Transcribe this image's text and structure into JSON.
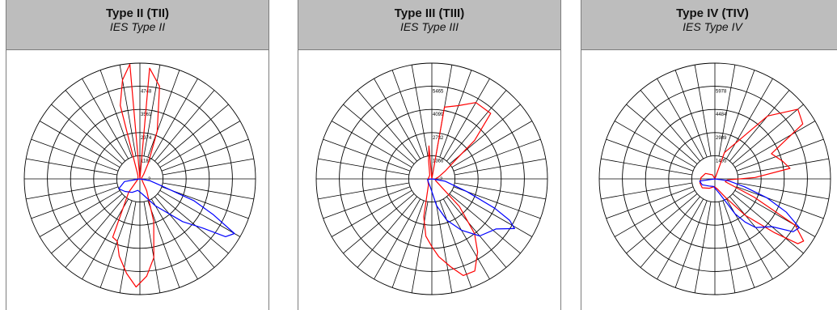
{
  "chart_data": [
    {
      "type": "polar",
      "title": "Type II (TII)",
      "subtitle": "IES Type II",
      "rlabels": [
        "1187",
        "2374",
        "3561",
        "4748"
      ],
      "annotation": "2",
      "rmax": 5935,
      "series": [
        {
          "color": "#ff0000",
          "points": [
            [
              0,
              0
            ],
            [
              5,
              5700
            ],
            [
              12,
              4850
            ],
            [
              20,
              2600
            ],
            [
              28,
              900
            ],
            [
              40,
              300
            ],
            [
              60,
              100
            ],
            [
              120,
              120
            ],
            [
              150,
              700
            ],
            [
              162,
              2300
            ],
            [
              170,
              4100
            ],
            [
              176,
              5000
            ],
            [
              182,
              5550
            ],
            [
              188,
              4900
            ],
            [
              195,
              4100
            ],
            [
              200,
              3400
            ],
            [
              205,
              3300
            ],
            [
              220,
              900
            ],
            [
              260,
              100
            ],
            [
              330,
              200
            ],
            [
              345,
              3900
            ],
            [
              350,
              5150
            ],
            [
              355,
              5900
            ],
            [
              360,
              0
            ]
          ]
        },
        {
          "color": "#0000ff",
          "points": [
            [
              90,
              0
            ],
            [
              100,
              500
            ],
            [
              108,
              1200
            ],
            [
              112,
              3000
            ],
            [
              116,
              4200
            ],
            [
              120,
              5600
            ],
            [
              124,
              5300
            ],
            [
              128,
              4100
            ],
            [
              135,
              3100
            ],
            [
              150,
              1600
            ],
            [
              170,
              800
            ],
            [
              190,
              600
            ],
            [
              210,
              800
            ],
            [
              230,
              1000
            ],
            [
              245,
              1200
            ],
            [
              260,
              800
            ],
            [
              270,
              0
            ]
          ]
        }
      ]
    },
    {
      "type": "polar",
      "title": "Type III (TIII)",
      "subtitle": "IES Type III",
      "rlabels": [
        "1366",
        "2732",
        "4099",
        "5465"
      ],
      "annotation": "2",
      "rmax": 6832,
      "series": [
        {
          "color": "#ff0000",
          "points": [
            [
              0,
              0
            ],
            [
              10,
              4300
            ],
            [
              20,
              4600
            ],
            [
              30,
              5200
            ],
            [
              42,
              5200
            ],
            [
              48,
              3400
            ],
            [
              52,
              1700
            ],
            [
              60,
              900
            ],
            [
              75,
              400
            ],
            [
              90,
              200
            ],
            [
              115,
              250
            ],
            [
              135,
              2300
            ],
            [
              142,
              4100
            ],
            [
              148,
              5100
            ],
            [
              155,
              6000
            ],
            [
              162,
              6000
            ],
            [
              168,
              5300
            ],
            [
              175,
              4600
            ],
            [
              180,
              4000
            ],
            [
              186,
              3400
            ],
            [
              192,
              2300
            ],
            [
              210,
              400
            ],
            [
              260,
              250
            ],
            [
              290,
              200
            ],
            [
              330,
              250
            ],
            [
              350,
              1100
            ],
            [
              355,
              1950
            ],
            [
              360,
              0
            ]
          ]
        },
        {
          "color": "#0000ff",
          "points": [
            [
              90,
              0
            ],
            [
              100,
              800
            ],
            [
              110,
              2200
            ],
            [
              115,
              4100
            ],
            [
              118,
              5200
            ],
            [
              121,
              5700
            ],
            [
              128,
              4800
            ],
            [
              140,
              4400
            ],
            [
              150,
              3500
            ],
            [
              160,
              2600
            ],
            [
              170,
              1600
            ],
            [
              190,
              500
            ],
            [
              220,
              300
            ],
            [
              260,
              250
            ],
            [
              270,
              0
            ]
          ]
        }
      ]
    },
    {
      "type": "polar",
      "title": "Type IV (TIV)",
      "subtitle": "IES Type IV",
      "rlabels": [
        "1495",
        "2989",
        "4484",
        "5978"
      ],
      "annotation": "",
      "rmax": 7473,
      "series": [
        {
          "color": "#ff0000",
          "points": [
            [
              0,
              0
            ],
            [
              20,
              1800
            ],
            [
              40,
              5300
            ],
            [
              50,
              7000
            ],
            [
              58,
              6700
            ],
            [
              66,
              4000
            ],
            [
              75,
              4500
            ],
            [
              82,
              4900
            ],
            [
              88,
              2600
            ],
            [
              95,
              800
            ],
            [
              105,
              700
            ],
            [
              115,
              2800
            ],
            [
              120,
              6000
            ],
            [
              125,
              7000
            ],
            [
              128,
              6800
            ],
            [
              132,
              5200
            ],
            [
              140,
              3100
            ],
            [
              150,
              1400
            ],
            [
              165,
              700
            ],
            [
              185,
              500
            ],
            [
              210,
              700
            ],
            [
              235,
              1000
            ],
            [
              255,
              1000
            ],
            [
              275,
              900
            ],
            [
              300,
              700
            ],
            [
              330,
              300
            ],
            [
              360,
              0
            ]
          ]
        },
        {
          "color": "#0000ff",
          "points": [
            [
              90,
              0
            ],
            [
              98,
              900
            ],
            [
              105,
              2000
            ],
            [
              110,
              3600
            ],
            [
              115,
              5100
            ],
            [
              120,
              6300
            ],
            [
              124,
              6100
            ],
            [
              130,
              4800
            ],
            [
              140,
              4100
            ],
            [
              145,
              3400
            ],
            [
              150,
              2600
            ],
            [
              165,
              900
            ],
            [
              190,
              500
            ],
            [
              220,
              600
            ],
            [
              245,
              900
            ],
            [
              262,
              1000
            ],
            [
              270,
              0
            ]
          ]
        }
      ]
    }
  ]
}
